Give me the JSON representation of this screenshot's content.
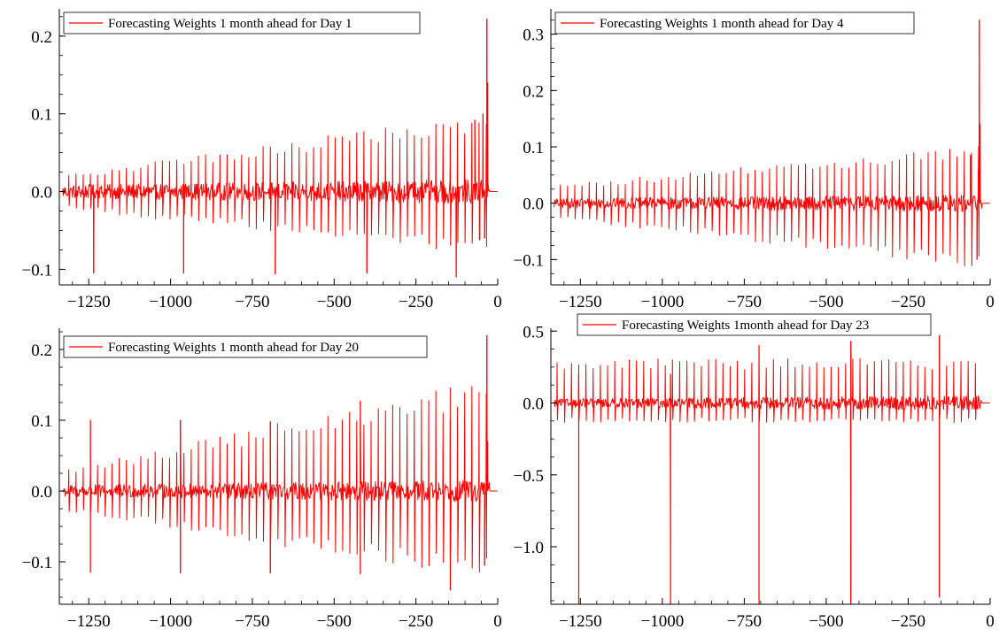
{
  "chart_data": [
    {
      "type": "line",
      "legend": "Forecasting Weights 1 month ahead for Day 1",
      "legend_position": "top-left",
      "xlim": [
        -1340,
        0
      ],
      "ylim": [
        -0.12,
        0.235
      ],
      "xticks": [
        -1250,
        -1000,
        -750,
        -500,
        -250,
        0
      ],
      "xtick_labels": [
        "−1250",
        "−1000",
        "−750",
        "−500",
        "−250",
        "0"
      ],
      "yticks": [
        -0.1,
        0.0,
        0.1,
        0.2
      ],
      "ytick_labels": [
        "−0.1",
        "0.0",
        "0.1",
        "0.2"
      ],
      "x_start": -1330,
      "x_end": -25,
      "noise": 0.012,
      "x_range": [
        -1330,
        -25
      ],
      "periodic_spikes": {
        "period": 22,
        "start_x": -1310,
        "end_x": -30,
        "start_val": 0.018,
        "end_val": 0.09,
        "alt_down_start": -0.02,
        "alt_down_end": -0.07
      },
      "big_spikes": [
        {
          "x": -1235,
          "y": -0.105
        },
        {
          "x": -960,
          "y": -0.105
        },
        {
          "x": -680,
          "y": -0.106
        },
        {
          "x": -400,
          "y": -0.105
        },
        {
          "x": -127,
          "y": -0.11
        },
        {
          "x": -33,
          "y": 0.222
        },
        {
          "x": -31,
          "y": 0.14
        },
        {
          "x": -35,
          "y": 0.06
        },
        {
          "x": -40,
          "y": -0.06
        },
        {
          "x": -45,
          "y": 0.1
        },
        {
          "x": -55,
          "y": -0.062
        },
        {
          "x": -70,
          "y": 0.092
        }
      ]
    },
    {
      "type": "line",
      "legend": "Forecasting Weights 1 month ahead for Day 4",
      "legend_position": "top-left",
      "xlim": [
        -1340,
        0
      ],
      "ylim": [
        -0.145,
        0.345
      ],
      "xticks": [
        -1250,
        -1000,
        -750,
        -500,
        -250,
        0
      ],
      "xtick_labels": [
        "−1250",
        "−1000",
        "−750",
        "−500",
        "−250",
        "0"
      ],
      "yticks": [
        -0.1,
        0.0,
        0.1,
        0.2,
        0.3
      ],
      "ytick_labels": [
        "−0.1",
        "0.0",
        "0.1",
        "0.2",
        "0.3"
      ],
      "x_range": [
        -1330,
        -25
      ],
      "noise": 0.012,
      "periodic_spikes": {
        "period": 22,
        "start_x": -1310,
        "end_x": -30,
        "start_val": 0.028,
        "end_val": 0.09,
        "alt_down_start": -0.025,
        "alt_down_end": -0.1
      },
      "big_spikes": [
        {
          "x": -33,
          "y": 0.325
        },
        {
          "x": -31,
          "y": 0.14
        },
        {
          "x": -36,
          "y": 0.06
        },
        {
          "x": -40,
          "y": -0.1
        },
        {
          "x": -60,
          "y": 0.085
        }
      ]
    },
    {
      "type": "line",
      "legend": "Forecasting Weights 1 month ahead for Day 20",
      "legend_position": "top-left",
      "xlim": [
        -1340,
        0
      ],
      "ylim": [
        -0.16,
        0.23
      ],
      "xticks": [
        -1250,
        -1000,
        -750,
        -500,
        -250,
        0
      ],
      "xtick_labels": [
        "−1250",
        "−1000",
        "−750",
        "−500",
        "−250",
        "0"
      ],
      "yticks": [
        -0.1,
        0.0,
        0.1,
        0.2
      ],
      "ytick_labels": [
        "−0.1",
        "0.0",
        "0.1",
        "0.2"
      ],
      "x_range": [
        -1330,
        -25
      ],
      "noise": 0.012,
      "periodic_spikes": {
        "period": 22,
        "start_x": -1310,
        "end_x": -30,
        "start_val": 0.025,
        "end_val": 0.14,
        "alt_down_start": -0.025,
        "alt_down_end": -0.11
      },
      "big_spikes": [
        {
          "x": -1245,
          "y": -0.115
        },
        {
          "x": -1245,
          "y": 0.1
        },
        {
          "x": -970,
          "y": -0.116
        },
        {
          "x": -970,
          "y": 0.1
        },
        {
          "x": -695,
          "y": -0.116
        },
        {
          "x": -695,
          "y": 0.098
        },
        {
          "x": -420,
          "y": -0.117
        },
        {
          "x": -420,
          "y": 0.127
        },
        {
          "x": -145,
          "y": -0.14
        },
        {
          "x": -145,
          "y": 0.1
        },
        {
          "x": -33,
          "y": 0.22
        },
        {
          "x": -31,
          "y": 0.07
        },
        {
          "x": -40,
          "y": -0.105
        }
      ]
    },
    {
      "type": "line",
      "legend": "Forecasting Weights 1month ahead for Day 23",
      "legend_position": "top-center",
      "xlim": [
        -1340,
        0
      ],
      "ylim": [
        -1.4,
        0.52
      ],
      "xticks": [
        -1250,
        -1000,
        -750,
        -500,
        -250,
        0
      ],
      "xtick_labels": [
        "−1250",
        "−1000",
        "−750",
        "−500",
        "−250",
        "0"
      ],
      "yticks": [
        -1.0,
        -0.5,
        0.0,
        0.5
      ],
      "ytick_labels": [
        "−1.0",
        "−0.5",
        "0.0",
        "0.5"
      ],
      "x_range": [
        -1330,
        -25
      ],
      "noise": 0.04,
      "periodic_spikes": {
        "period": 22,
        "start_x": -1320,
        "end_x": -30,
        "start_val": 0.27,
        "end_val": 0.27,
        "alt_down_start": -0.12,
        "alt_down_end": -0.12
      },
      "big_spikes": [
        {
          "x": -1255,
          "y": -1.4
        },
        {
          "x": -1255,
          "y": 0.2
        },
        {
          "x": -975,
          "y": -1.4
        },
        {
          "x": -975,
          "y": 0.2
        },
        {
          "x": -705,
          "y": -1.4
        },
        {
          "x": -705,
          "y": 0.4
        },
        {
          "x": -425,
          "y": -1.4
        },
        {
          "x": -425,
          "y": 0.43
        },
        {
          "x": -155,
          "y": -1.35
        },
        {
          "x": -155,
          "y": 0.47
        }
      ]
    }
  ],
  "colors": {
    "series": "#ff0000",
    "axis": "#000000"
  }
}
